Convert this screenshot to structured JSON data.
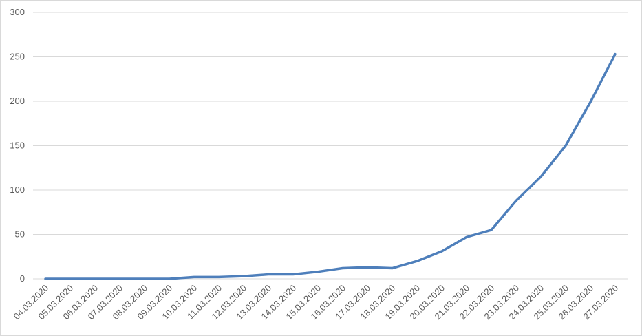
{
  "chart_data": {
    "type": "line",
    "categories": [
      "04.03.2020",
      "05.03.2020",
      "06.03.2020",
      "07.03.2020",
      "08.03.2020",
      "09.03.2020",
      "10.03.2020",
      "11.03.2020",
      "12.03.2020",
      "13.03.2020",
      "14.03.2020",
      "15.03.2020",
      "16.03.2020",
      "17.03.2020",
      "18.03.2020",
      "19.03.2020",
      "20.03.2020",
      "21.03.2020",
      "22.03.2020",
      "23.03.2020",
      "24.03.2020",
      "25.03.2020",
      "26.03.2020",
      "27.03.2020"
    ],
    "values": [
      0,
      0,
      0,
      0,
      0,
      0,
      2,
      2,
      3,
      5,
      5,
      8,
      12,
      13,
      12,
      20,
      31,
      47,
      55,
      88,
      115,
      150,
      199,
      253
    ],
    "color": "#4e7fbb",
    "ylim": [
      0,
      300
    ],
    "yticks": [
      0,
      50,
      100,
      150,
      200,
      250,
      300
    ],
    "grid": true
  }
}
